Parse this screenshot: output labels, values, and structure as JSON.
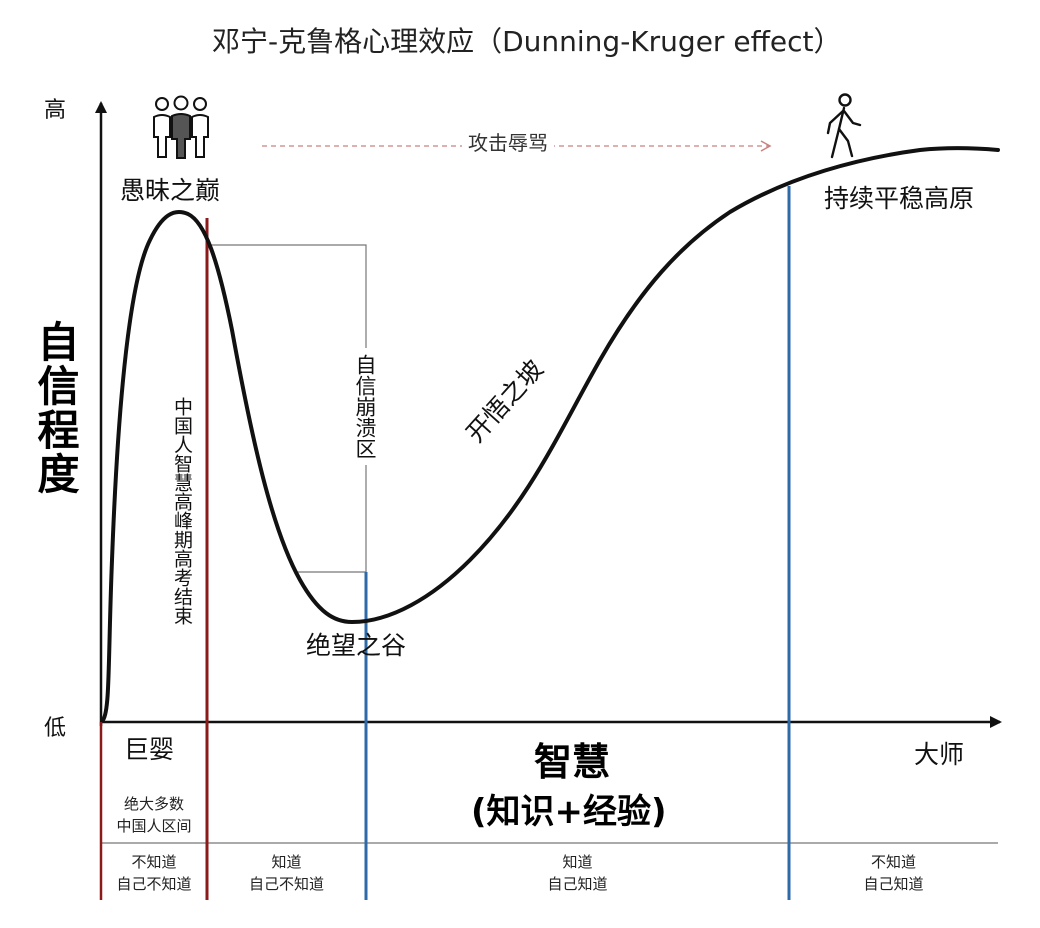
{
  "title": "邓宁-克鲁格心理效应（Dunning-Kruger effect）",
  "y_axis": {
    "label": "自信程度",
    "high": "高",
    "low": "低"
  },
  "x_axis": {
    "label": "智慧",
    "sublabel": "(知识+经验)",
    "start": "巨婴",
    "end": "大师"
  },
  "curve_labels": {
    "peak": "愚昧之巅",
    "attack": "攻击辱骂",
    "crash": "自信崩溃区",
    "valley": "绝望之谷",
    "slope": "开悟之坡",
    "plateau": "持续平稳高原",
    "exam": "中国人智慧高峰期高考结束"
  },
  "majority_note": [
    "绝大多数",
    "中国人区间"
  ],
  "zones": [
    {
      "line1": "不知道",
      "line2": "自己不知道"
    },
    {
      "line1": "知道",
      "line2": "自己不知道"
    },
    {
      "line1": "知道",
      "line2": "自己知道"
    },
    {
      "line1": "不知道",
      "line2": "自己知道"
    }
  ],
  "icons": {
    "crowd": "people-group-icon",
    "walker": "walking-person-icon"
  },
  "colors": {
    "curve": "#111111",
    "red_line": "#8b1a1a",
    "blue_line": "#2e6aa8",
    "arrow": "#c98080",
    "bracket": "#777777"
  }
}
